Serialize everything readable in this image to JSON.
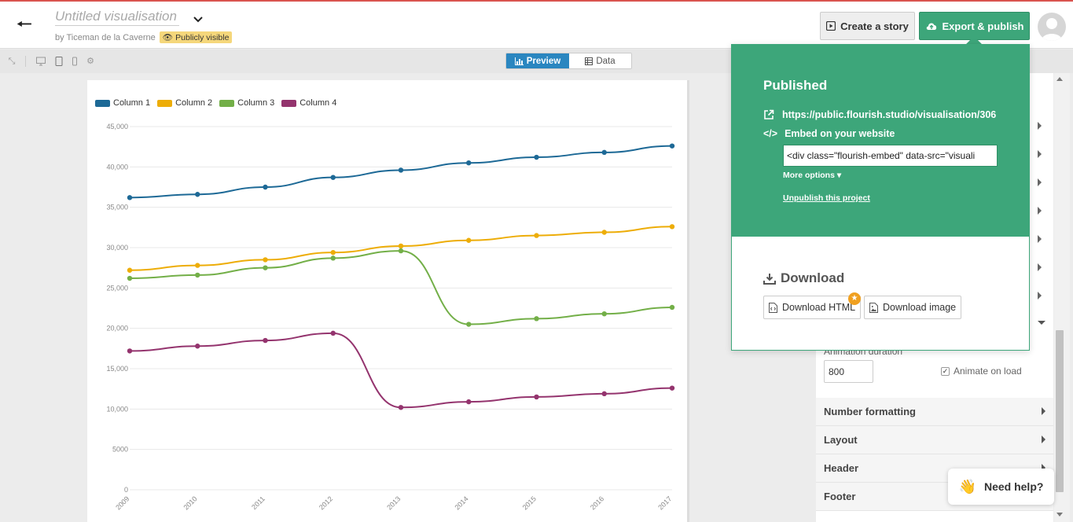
{
  "header": {
    "title": "Untitled visualisation",
    "byline": "by Ticeman de la Caverne",
    "visibility_badge": "Publicly visible",
    "create_story_label": "Create a story",
    "export_label": "Export & publish"
  },
  "toolbar": {
    "preview_label": "Preview",
    "data_label": "Data"
  },
  "colors": {
    "accent_green": "#3da67a",
    "preview_blue": "#2a86c0",
    "badge_yellow": "#f5d77b"
  },
  "panel": {
    "animation_duration_label": "Animation duration",
    "animation_duration_value": "800",
    "animate_on_load_label": "Animate on load",
    "animate_on_load_checked": true,
    "sections": [
      {
        "label": "Number formatting"
      },
      {
        "label": "Layout"
      },
      {
        "label": "Header"
      },
      {
        "label": "Footer"
      }
    ]
  },
  "popover": {
    "published_title": "Published",
    "public_url": "https://public.flourish.studio/visualisation/306",
    "embed_label": "Embed on your website",
    "embed_code": "<div class=\"flourish-embed\" data-src=\"visuali",
    "more_options_label": "More options",
    "unpublish_label": "Unpublish this project",
    "download_title": "Download",
    "download_html_label": "Download HTML",
    "download_image_label": "Download image"
  },
  "help": {
    "label": "Need help?"
  },
  "chart_data": {
    "type": "line",
    "x": [
      "2009",
      "2010",
      "2011",
      "2012",
      "2013",
      "2014",
      "2015",
      "2016",
      "2017"
    ],
    "y_ticks": [
      "0",
      "5000",
      "10,000",
      "15,000",
      "20,000",
      "25,000",
      "30,000",
      "35,000",
      "40,000",
      "45,000"
    ],
    "ylim": [
      0,
      45000
    ],
    "grid": true,
    "legend_placement": "top-left",
    "series": [
      {
        "name": "Column 1",
        "color": "#1d6996",
        "values": [
          36200,
          36600,
          37500,
          38700,
          39600,
          40500,
          41200,
          41800,
          42600
        ]
      },
      {
        "name": "Column 2",
        "color": "#edad08",
        "values": [
          27200,
          27800,
          28500,
          29400,
          30200,
          30900,
          31500,
          31900,
          32600
        ]
      },
      {
        "name": "Column 3",
        "color": "#73af48",
        "values": [
          26200,
          26600,
          27500,
          28700,
          29600,
          20500,
          21200,
          21800,
          22600
        ]
      },
      {
        "name": "Column 4",
        "color": "#94346e",
        "values": [
          17200,
          17800,
          18500,
          19400,
          10200,
          10900,
          11500,
          11900,
          12600
        ]
      }
    ]
  }
}
